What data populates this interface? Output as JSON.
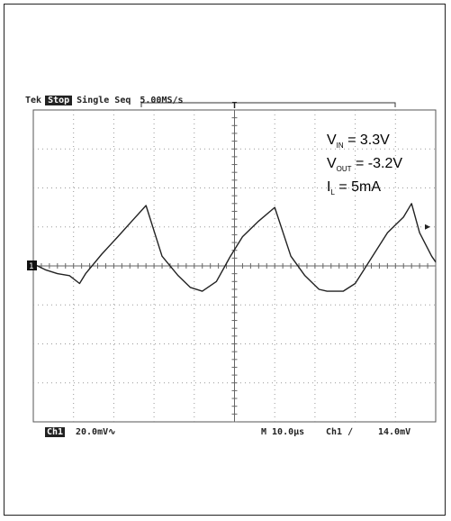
{
  "scope_header": {
    "brand": "Tek",
    "state": "Stop",
    "mode": "Single Seq",
    "sample_rate": "5.00MS/s"
  },
  "scope_footer": {
    "channel": "Ch1",
    "scale": "20.0mV∿",
    "timebase": "M 10.0µs",
    "trigger": "Ch1 ∕",
    "trigger_level": "14.0mV"
  },
  "conditions": [
    {
      "sym": "V",
      "sub": "IN",
      "rest": " = 3.3V"
    },
    {
      "sym": "V",
      "sub": "OUT",
      "rest": " = -3.2V"
    },
    {
      "sym": "I",
      "sub": "L",
      "rest": " = 5mA"
    }
  ],
  "markers": {
    "channel_marker": "1",
    "trigger_marker": "T"
  },
  "chart_data": {
    "type": "line",
    "title": "",
    "xlabel": "",
    "ylabel": "",
    "x_units": "µs",
    "y_units": "mV",
    "xlim": [
      0,
      100
    ],
    "ylim": [
      -80,
      80
    ],
    "grid": true,
    "grid_divisions": {
      "x": 10,
      "y": 8
    },
    "series": [
      {
        "x": [
          0,
          3,
          6,
          9,
          11.5,
          13,
          17,
          21,
          24.5,
          28,
          32,
          36,
          39,
          42,
          45.5,
          49,
          52,
          56,
          60,
          64,
          67.5,
          71,
          73,
          77,
          80,
          84,
          88,
          92,
          94,
          96,
          99,
          100
        ],
        "y": [
          1,
          -2,
          -4,
          -5,
          -9,
          -4,
          6,
          15,
          23,
          31,
          5,
          -5,
          -11,
          -13,
          -8,
          5,
          15,
          23,
          30,
          5,
          -5,
          -12,
          -13,
          -13,
          -9,
          4,
          17,
          25,
          32,
          17,
          5,
          2
        ]
      }
    ]
  }
}
